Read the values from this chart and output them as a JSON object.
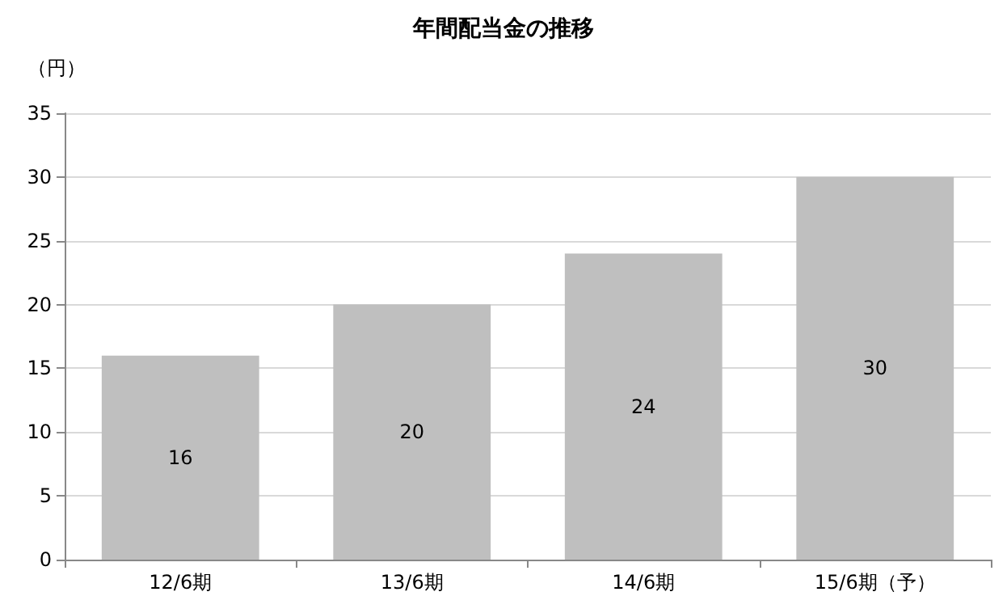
{
  "chart_data": {
    "type": "bar",
    "title": "年間配当金の推移",
    "ylabel": "（円）",
    "categories": [
      "12/6期",
      "13/6期",
      "14/6期",
      "15/6期（予）"
    ],
    "values": [
      16,
      20,
      24,
      30
    ],
    "color": "#bfbfbf",
    "ylim": [
      0,
      35
    ],
    "yticks": [
      0,
      5,
      10,
      15,
      20,
      25,
      30,
      35
    ],
    "grid": "y",
    "data_labels": true
  }
}
